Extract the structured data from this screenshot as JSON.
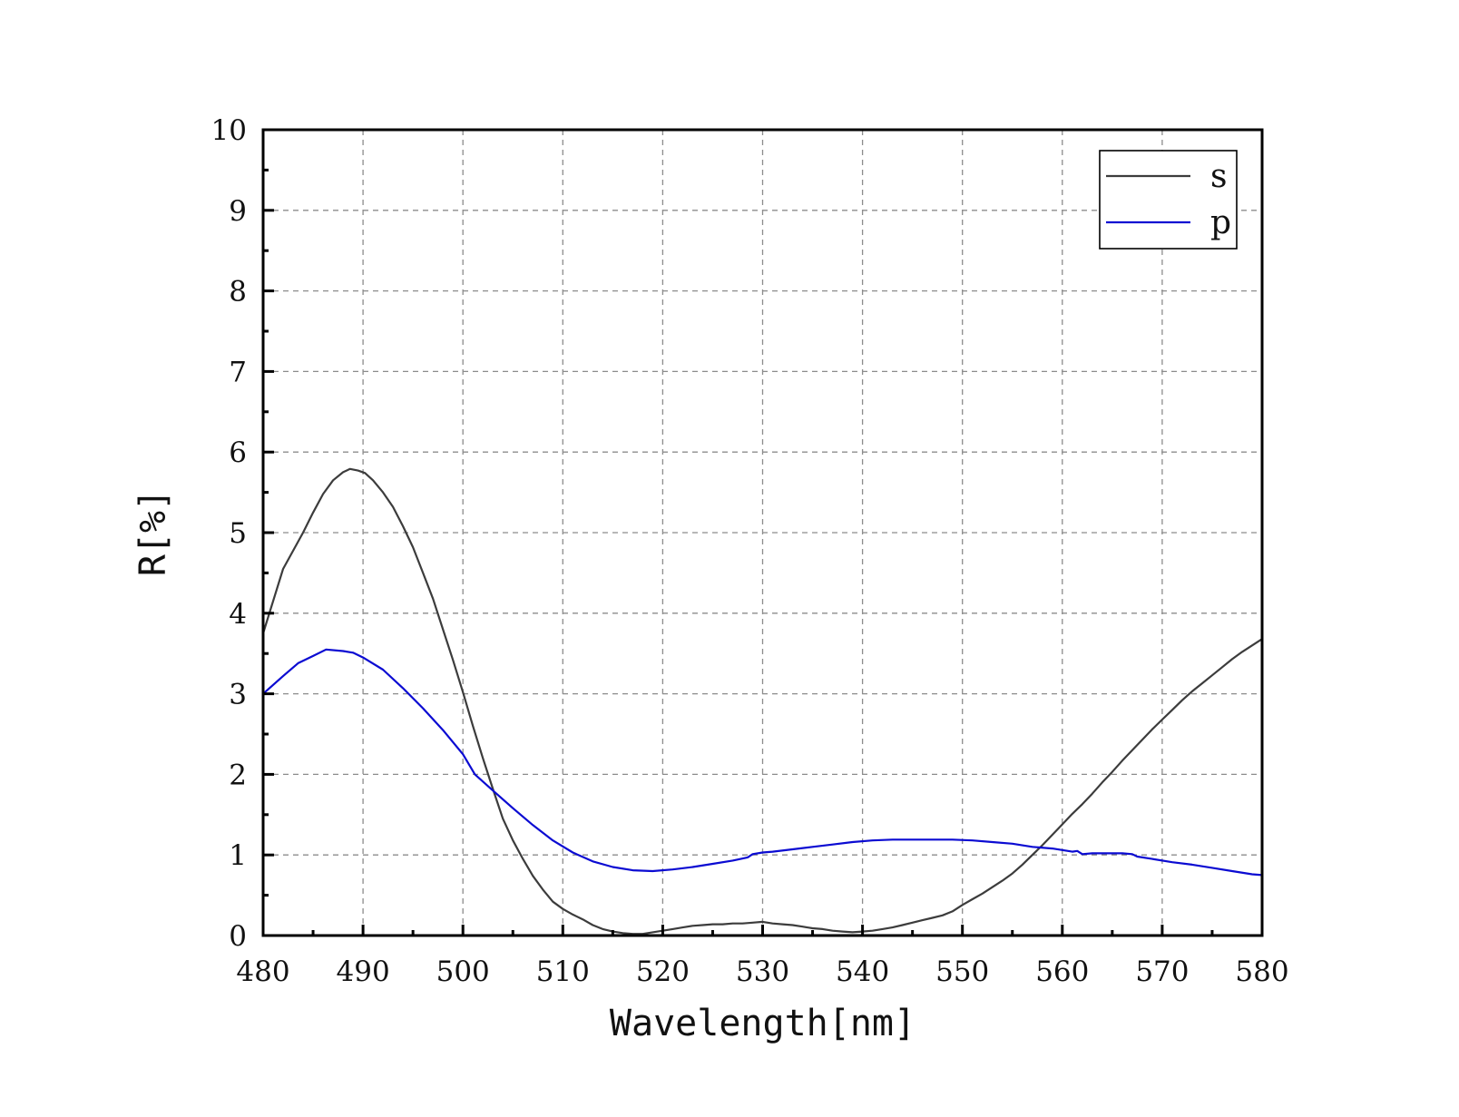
{
  "chart_data": {
    "type": "line",
    "xlabel": "Wavelength[nm]",
    "ylabel": "R[%]",
    "xlim": [
      480,
      580
    ],
    "ylim": [
      0,
      10
    ],
    "x_ticks": [
      480,
      490,
      500,
      510,
      520,
      530,
      540,
      550,
      560,
      570,
      580
    ],
    "y_ticks": [
      0,
      1,
      2,
      3,
      4,
      5,
      6,
      7,
      8,
      9,
      10
    ],
    "x_tick_labels": [
      "480",
      "490",
      "500",
      "510",
      "520",
      "530",
      "540",
      "550",
      "560",
      "570",
      "580"
    ],
    "y_tick_labels": [
      "0",
      "1",
      "2",
      "3",
      "4",
      "5",
      "6",
      "7",
      "8",
      "9",
      "10"
    ],
    "grid": true,
    "legend_position": "top-right",
    "series": [
      {
        "name": "s",
        "color": "#3c3c3c",
        "points": [
          [
            480,
            3.75
          ],
          [
            482,
            4.55
          ],
          [
            484,
            5.0
          ],
          [
            485,
            5.25
          ],
          [
            486,
            5.48
          ],
          [
            487,
            5.65
          ],
          [
            488,
            5.75
          ],
          [
            488.7,
            5.79
          ],
          [
            489.5,
            5.77
          ],
          [
            490.2,
            5.74
          ],
          [
            491,
            5.65
          ],
          [
            492,
            5.5
          ],
          [
            493,
            5.32
          ],
          [
            494,
            5.08
          ],
          [
            495,
            4.82
          ],
          [
            496,
            4.5
          ],
          [
            497,
            4.18
          ],
          [
            498,
            3.8
          ],
          [
            499,
            3.42
          ],
          [
            500,
            3.02
          ],
          [
            501,
            2.6
          ],
          [
            502,
            2.2
          ],
          [
            503,
            1.82
          ],
          [
            504,
            1.45
          ],
          [
            505,
            1.18
          ],
          [
            506,
            0.95
          ],
          [
            507,
            0.74
          ],
          [
            508,
            0.57
          ],
          [
            509,
            0.42
          ],
          [
            510,
            0.33
          ],
          [
            511,
            0.26
          ],
          [
            512,
            0.2
          ],
          [
            513,
            0.13
          ],
          [
            514,
            0.08
          ],
          [
            515,
            0.05
          ],
          [
            516,
            0.03
          ],
          [
            517,
            0.02
          ],
          [
            518,
            0.02
          ],
          [
            519,
            0.04
          ],
          [
            520,
            0.06
          ],
          [
            521,
            0.08
          ],
          [
            522,
            0.1
          ],
          [
            523,
            0.12
          ],
          [
            524,
            0.13
          ],
          [
            525,
            0.14
          ],
          [
            526,
            0.14
          ],
          [
            527,
            0.15
          ],
          [
            528,
            0.15
          ],
          [
            529,
            0.16
          ],
          [
            530,
            0.17
          ],
          [
            531,
            0.15
          ],
          [
            532,
            0.14
          ],
          [
            533,
            0.13
          ],
          [
            534,
            0.11
          ],
          [
            535,
            0.09
          ],
          [
            536,
            0.08
          ],
          [
            537,
            0.06
          ],
          [
            538,
            0.05
          ],
          [
            539,
            0.04
          ],
          [
            540,
            0.05
          ],
          [
            541,
            0.06
          ],
          [
            542,
            0.08
          ],
          [
            543,
            0.1
          ],
          [
            544,
            0.13
          ],
          [
            545,
            0.16
          ],
          [
            546,
            0.19
          ],
          [
            547,
            0.22
          ],
          [
            548,
            0.25
          ],
          [
            549,
            0.3
          ],
          [
            550,
            0.38
          ],
          [
            551,
            0.45
          ],
          [
            552,
            0.52
          ],
          [
            553,
            0.6
          ],
          [
            554,
            0.68
          ],
          [
            555,
            0.77
          ],
          [
            556,
            0.88
          ],
          [
            557,
            1.0
          ],
          [
            558,
            1.12
          ],
          [
            559,
            1.25
          ],
          [
            560,
            1.38
          ],
          [
            561,
            1.51
          ],
          [
            562,
            1.63
          ],
          [
            563,
            1.76
          ],
          [
            564,
            1.9
          ],
          [
            565,
            2.03
          ],
          [
            566,
            2.17
          ],
          [
            567,
            2.3
          ],
          [
            568,
            2.43
          ],
          [
            569,
            2.56
          ],
          [
            570,
            2.68
          ],
          [
            571,
            2.8
          ],
          [
            572,
            2.92
          ],
          [
            573,
            3.03
          ],
          [
            574,
            3.13
          ],
          [
            575,
            3.23
          ],
          [
            576,
            3.33
          ],
          [
            577,
            3.43
          ],
          [
            578,
            3.52
          ],
          [
            579,
            3.6
          ],
          [
            580,
            3.68
          ]
        ]
      },
      {
        "name": "p",
        "color": "#0b0bd2",
        "points": [
          [
            480,
            3.0
          ],
          [
            482,
            3.22
          ],
          [
            483.5,
            3.38
          ],
          [
            485,
            3.47
          ],
          [
            486.3,
            3.55
          ],
          [
            488,
            3.53
          ],
          [
            489,
            3.51
          ],
          [
            490,
            3.45
          ],
          [
            492,
            3.3
          ],
          [
            494,
            3.07
          ],
          [
            496,
            2.82
          ],
          [
            498,
            2.55
          ],
          [
            500,
            2.25
          ],
          [
            501.2,
            2.0
          ],
          [
            503,
            1.8
          ],
          [
            505,
            1.58
          ],
          [
            507,
            1.37
          ],
          [
            509,
            1.18
          ],
          [
            511,
            1.03
          ],
          [
            513,
            0.92
          ],
          [
            515,
            0.85
          ],
          [
            517,
            0.81
          ],
          [
            519,
            0.8
          ],
          [
            521,
            0.82
          ],
          [
            523,
            0.85
          ],
          [
            525,
            0.89
          ],
          [
            527,
            0.93
          ],
          [
            528.5,
            0.97
          ],
          [
            529,
            1.01
          ],
          [
            530,
            1.03
          ],
          [
            531,
            1.04
          ],
          [
            533,
            1.07
          ],
          [
            535,
            1.1
          ],
          [
            537,
            1.13
          ],
          [
            539,
            1.16
          ],
          [
            541,
            1.18
          ],
          [
            543,
            1.19
          ],
          [
            545,
            1.19
          ],
          [
            547,
            1.19
          ],
          [
            549,
            1.19
          ],
          [
            551,
            1.18
          ],
          [
            553,
            1.16
          ],
          [
            555,
            1.14
          ],
          [
            557,
            1.1
          ],
          [
            559,
            1.08
          ],
          [
            561,
            1.04
          ],
          [
            561.5,
            1.05
          ],
          [
            562,
            1.01
          ],
          [
            563,
            1.02
          ],
          [
            564,
            1.02
          ],
          [
            565,
            1.02
          ],
          [
            566,
            1.02
          ],
          [
            567,
            1.01
          ],
          [
            567.5,
            0.98
          ],
          [
            569,
            0.95
          ],
          [
            571,
            0.91
          ],
          [
            573,
            0.88
          ],
          [
            575,
            0.84
          ],
          [
            577,
            0.8
          ],
          [
            579,
            0.76
          ],
          [
            580,
            0.75
          ]
        ]
      }
    ]
  }
}
